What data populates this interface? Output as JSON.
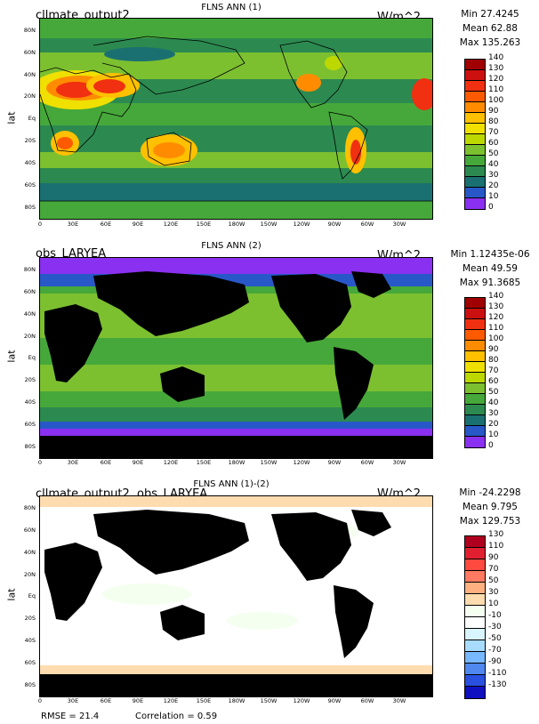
{
  "panels": [
    {
      "id": "model",
      "left_title": "cllmate_output2",
      "center_title": "FLNS ANN (1)",
      "units": "W/m^2",
      "stats": {
        "min": "Min 27.4245",
        "mean": "Mean 62.88",
        "max": "Max 135.263"
      },
      "ylabel": "lat",
      "colorbar": {
        "labels": [
          "140",
          "130",
          "120",
          "110",
          "100",
          "90",
          "80",
          "70",
          "60",
          "50",
          "40",
          "30",
          "20",
          "10",
          "0"
        ],
        "colors": [
          "#a00000",
          "#cc1010",
          "#f03010",
          "#ff5a00",
          "#ff8c00",
          "#ffc000",
          "#f0e000",
          "#bcd800",
          "#7cc030",
          "#46a83a",
          "#2c8a50",
          "#1a7070",
          "#2858c8",
          "#4040e8",
          "#8a30f0"
        ]
      }
    },
    {
      "id": "obs",
      "left_title": "obs_LARYEA",
      "center_title": "FLNS ANN (2)",
      "units": "W/m^2",
      "stats": {
        "min": "Min 1.12435e-06",
        "mean": "Mean 49.59",
        "max": "Max 91.3685"
      },
      "ylabel": "lat",
      "colorbar": {
        "labels": [
          "140",
          "130",
          "120",
          "110",
          "100",
          "90",
          "80",
          "70",
          "60",
          "50",
          "40",
          "30",
          "20",
          "10",
          "0"
        ],
        "colors": [
          "#a00000",
          "#cc1010",
          "#f03010",
          "#ff5a00",
          "#ff8c00",
          "#ffc000",
          "#f0e000",
          "#bcd800",
          "#7cc030",
          "#46a83a",
          "#2c8a50",
          "#1a7070",
          "#2858c8",
          "#4040e8",
          "#8a30f0"
        ]
      }
    },
    {
      "id": "diff",
      "left_title": "cllmate_output2, obs_LARYEA",
      "center_title": "FLNS ANN (1)-(2)",
      "units": "W/m^2",
      "stats": {
        "min": "Min -24.2298",
        "mean": "Mean 9.795",
        "max": "Max 129.753"
      },
      "ylabel": "lat",
      "colorbar": {
        "labels": [
          "130",
          "110",
          "90",
          "70",
          "50",
          "30",
          "10",
          "-10",
          "-30",
          "-50",
          "-70",
          "-90",
          "-110",
          "-130"
        ],
        "colors": [
          "#b00020",
          "#e02030",
          "#ff4a40",
          "#ff7a60",
          "#ffb080",
          "#ffdcb0",
          "#f4fff0",
          "#ffffff",
          "#d8f4ff",
          "#a8dcff",
          "#78b8ff",
          "#5088f0",
          "#2a50e0",
          "#1010c0"
        ]
      }
    }
  ],
  "lat_ticks": [
    "80N",
    "60N",
    "40N",
    "20N",
    "Eq",
    "20S",
    "40S",
    "60S",
    "80S"
  ],
  "lon_ticks": [
    "0",
    "30E",
    "60E",
    "90E",
    "120E",
    "150E",
    "180W",
    "150W",
    "120W",
    "90W",
    "60W",
    "30W"
  ],
  "footer": {
    "rmse": "RMSE = 21.4",
    "correlation": "Correlation = 0.59"
  }
}
